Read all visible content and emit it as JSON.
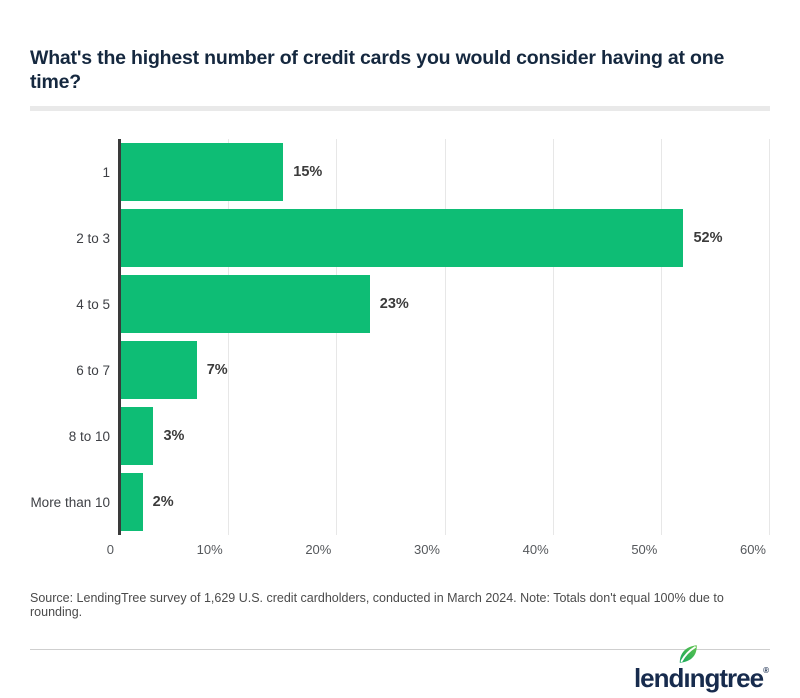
{
  "header": {
    "title": "What's the highest number of credit cards you would consider having at one time?"
  },
  "chart_data": {
    "type": "bar",
    "orientation": "horizontal",
    "title": "What's the highest number of credit cards you would consider having at one time?",
    "categories": [
      "1",
      "2 to 3",
      "4 to 5",
      "6 to 7",
      "8 to 10",
      "More than 10"
    ],
    "values": [
      15,
      52,
      23,
      7,
      3,
      2
    ],
    "value_labels": [
      "15%",
      "52%",
      "23%",
      "7%",
      "3%",
      "2%"
    ],
    "xlabel": "",
    "ylabel": "",
    "xlim": [
      0,
      60
    ],
    "x_ticks": [
      "0",
      "10%",
      "20%",
      "30%",
      "40%",
      "50%",
      "60%"
    ],
    "grid": "vertical-gridlines",
    "legend_position": "none",
    "bar_color": "#0ebd75"
  },
  "footer": {
    "source_note": "Source: LendingTree survey of 1,629 U.S. credit cardholders, conducted in March 2024. Note: Totals don't equal 100% due to rounding.",
    "logo": {
      "name": "lendingtree",
      "display_before": "lend",
      "display_i": "ı",
      "display_after": "ngtree",
      "registered_mark": "®",
      "leaf_icon": "leaf-icon"
    }
  },
  "colors": {
    "bar_green": "#0ebd75",
    "brand_navy": "#172b4d",
    "title_navy": "#15283f",
    "leaf_green_light": "#5fc34c",
    "leaf_green_dark": "#18a85e",
    "grid_gray": "#e7e7e7",
    "axis_dark": "#3a3a3a",
    "divider_gray": "#e9e9e9"
  }
}
